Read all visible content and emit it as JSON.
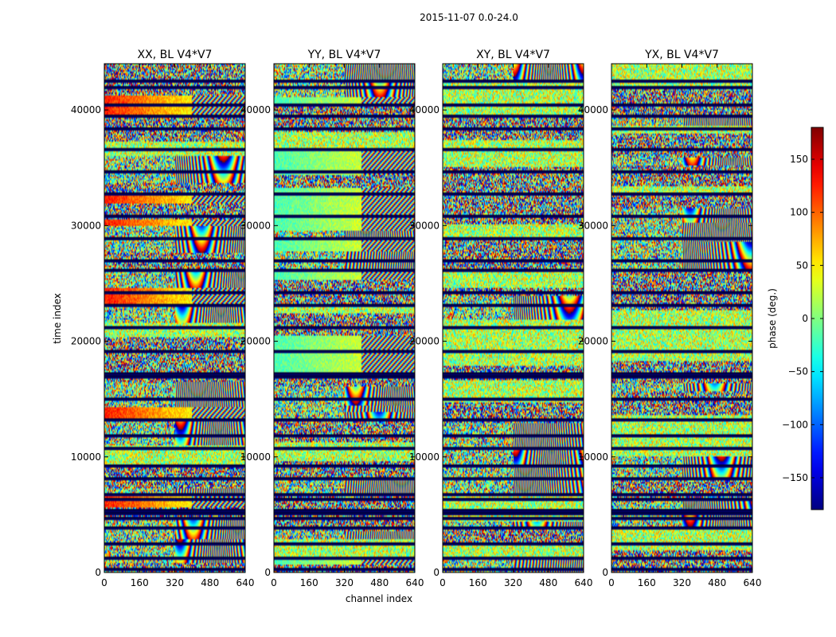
{
  "suptitle": "2015-11-07 0.0-24.0",
  "chart_data": {
    "type": "heatmap",
    "colormap": "jet",
    "x_axis": {
      "label": "channel index",
      "range": [
        0,
        640
      ],
      "ticks": [
        0,
        160,
        320,
        480,
        640
      ],
      "tick_labels": [
        "0",
        "160",
        "320",
        "480",
        "640"
      ]
    },
    "y_axis": {
      "label": "time index",
      "range": [
        0,
        44000
      ],
      "ticks": [
        0,
        10000,
        20000,
        30000,
        40000
      ],
      "tick_labels": [
        "0",
        "10000",
        "20000",
        "30000",
        "40000"
      ]
    },
    "colorbar": {
      "label": "phase (deg.)",
      "range": [
        -180,
        180
      ],
      "ticks": [
        -150,
        -100,
        -50,
        0,
        50,
        100,
        150
      ],
      "tick_labels": [
        "−150",
        "−100",
        "−50",
        "0",
        "50",
        "100",
        "150"
      ]
    },
    "panels": [
      {
        "title": "XX, BL V4*V7",
        "polarization": "XX"
      },
      {
        "title": "YY, BL V4*V7",
        "polarization": "YY"
      },
      {
        "title": "XY, BL V4*V7",
        "polarization": "XY"
      },
      {
        "title": "YX, BL V4*V7",
        "polarization": "YX"
      }
    ],
    "flagged_rows_time_index": [
      300,
      1200,
      2500,
      3900,
      4700,
      5050,
      5400,
      6300,
      6700,
      8200,
      9300,
      10700,
      11800,
      13200,
      15000,
      16900,
      17300,
      19200,
      21300,
      23200,
      24300,
      26200,
      27100,
      28900,
      30900,
      32800,
      34800,
      36700,
      38500,
      39600,
      40600,
      42100,
      42600
    ]
  }
}
